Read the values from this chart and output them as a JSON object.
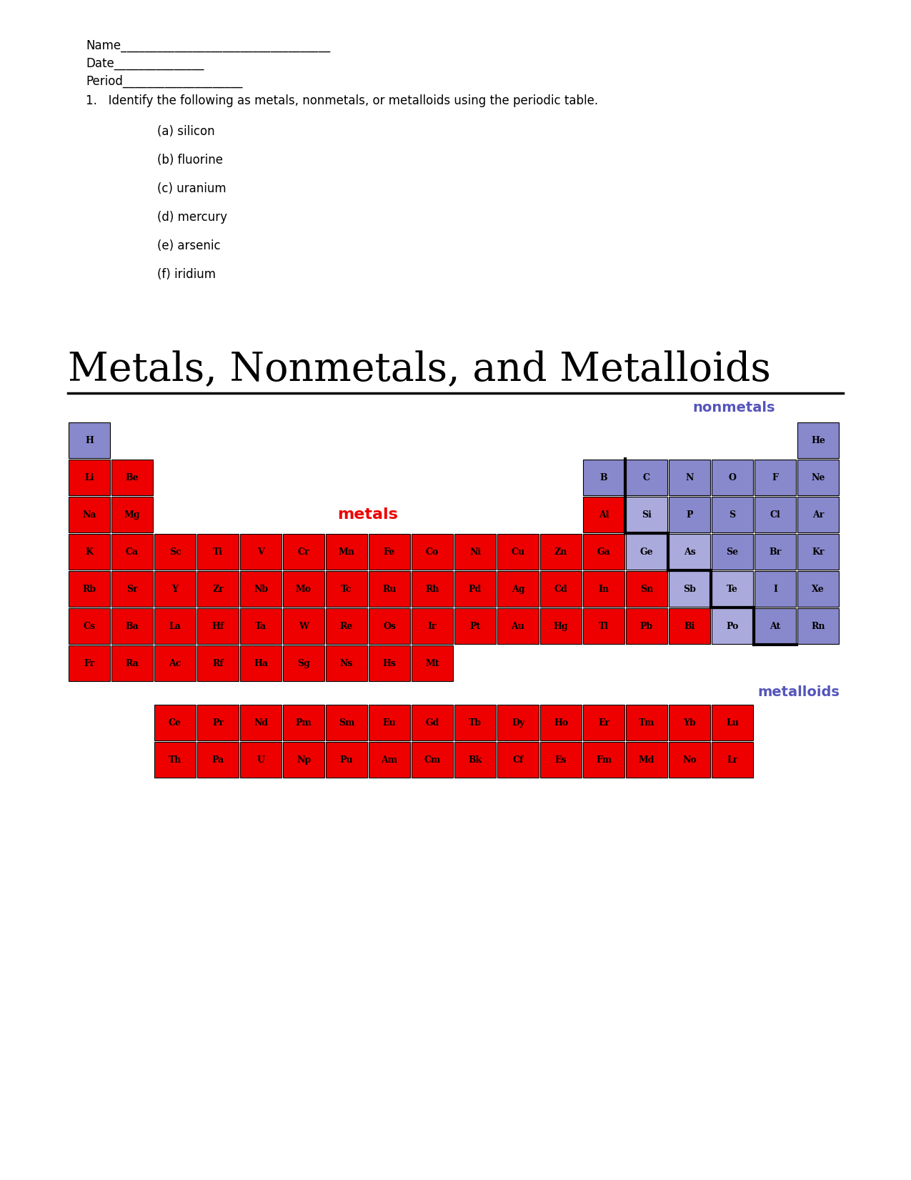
{
  "title": "Metals, Nonmetals, and Metalloids",
  "metal_color": "#EE0000",
  "nonmetal_color": "#8888CC",
  "metalloid_color": "#AAAADD",
  "metals_label_color": "#EE0000",
  "nonmetals_label_color": "#5555BB",
  "metalloids_label_color": "#5555BB",
  "worksheet_lines": [
    "Name___________________________________",
    "Date_______________",
    "Period____________________"
  ],
  "question": "1.   Identify the following as metals, nonmetals, or metalloids using the periodic table.",
  "items": [
    "(a) silicon",
    "(b) fluorine",
    "(c) uranium",
    "(d) mercury",
    "(e) arsenic",
    "(f) iridium"
  ],
  "elements_main": [
    {
      "symbol": "H",
      "row": 1,
      "col": 1,
      "type": "nonmetal"
    },
    {
      "symbol": "He",
      "row": 1,
      "col": 18,
      "type": "nonmetal"
    },
    {
      "symbol": "Li",
      "row": 2,
      "col": 1,
      "type": "metal"
    },
    {
      "symbol": "Be",
      "row": 2,
      "col": 2,
      "type": "metal"
    },
    {
      "symbol": "B",
      "row": 2,
      "col": 13,
      "type": "nonmetal"
    },
    {
      "symbol": "C",
      "row": 2,
      "col": 14,
      "type": "nonmetal"
    },
    {
      "symbol": "N",
      "row": 2,
      "col": 15,
      "type": "nonmetal"
    },
    {
      "symbol": "O",
      "row": 2,
      "col": 16,
      "type": "nonmetal"
    },
    {
      "symbol": "F",
      "row": 2,
      "col": 17,
      "type": "nonmetal"
    },
    {
      "symbol": "Ne",
      "row": 2,
      "col": 18,
      "type": "nonmetal"
    },
    {
      "symbol": "Na",
      "row": 3,
      "col": 1,
      "type": "metal"
    },
    {
      "symbol": "Mg",
      "row": 3,
      "col": 2,
      "type": "metal"
    },
    {
      "symbol": "Al",
      "row": 3,
      "col": 13,
      "type": "metal"
    },
    {
      "symbol": "Si",
      "row": 3,
      "col": 14,
      "type": "metalloid"
    },
    {
      "symbol": "P",
      "row": 3,
      "col": 15,
      "type": "nonmetal"
    },
    {
      "symbol": "S",
      "row": 3,
      "col": 16,
      "type": "nonmetal"
    },
    {
      "symbol": "Cl",
      "row": 3,
      "col": 17,
      "type": "nonmetal"
    },
    {
      "symbol": "Ar",
      "row": 3,
      "col": 18,
      "type": "nonmetal"
    },
    {
      "symbol": "K",
      "row": 4,
      "col": 1,
      "type": "metal"
    },
    {
      "symbol": "Ca",
      "row": 4,
      "col": 2,
      "type": "metal"
    },
    {
      "symbol": "Sc",
      "row": 4,
      "col": 3,
      "type": "metal"
    },
    {
      "symbol": "Ti",
      "row": 4,
      "col": 4,
      "type": "metal"
    },
    {
      "symbol": "V",
      "row": 4,
      "col": 5,
      "type": "metal"
    },
    {
      "symbol": "Cr",
      "row": 4,
      "col": 6,
      "type": "metal"
    },
    {
      "symbol": "Mn",
      "row": 4,
      "col": 7,
      "type": "metal"
    },
    {
      "symbol": "Fe",
      "row": 4,
      "col": 8,
      "type": "metal"
    },
    {
      "symbol": "Co",
      "row": 4,
      "col": 9,
      "type": "metal"
    },
    {
      "symbol": "Ni",
      "row": 4,
      "col": 10,
      "type": "metal"
    },
    {
      "symbol": "Cu",
      "row": 4,
      "col": 11,
      "type": "metal"
    },
    {
      "symbol": "Zn",
      "row": 4,
      "col": 12,
      "type": "metal"
    },
    {
      "symbol": "Ga",
      "row": 4,
      "col": 13,
      "type": "metal"
    },
    {
      "symbol": "Ge",
      "row": 4,
      "col": 14,
      "type": "metalloid"
    },
    {
      "symbol": "As",
      "row": 4,
      "col": 15,
      "type": "metalloid"
    },
    {
      "symbol": "Se",
      "row": 4,
      "col": 16,
      "type": "nonmetal"
    },
    {
      "symbol": "Br",
      "row": 4,
      "col": 17,
      "type": "nonmetal"
    },
    {
      "symbol": "Kr",
      "row": 4,
      "col": 18,
      "type": "nonmetal"
    },
    {
      "symbol": "Rb",
      "row": 5,
      "col": 1,
      "type": "metal"
    },
    {
      "symbol": "Sr",
      "row": 5,
      "col": 2,
      "type": "metal"
    },
    {
      "symbol": "Y",
      "row": 5,
      "col": 3,
      "type": "metal"
    },
    {
      "symbol": "Zr",
      "row": 5,
      "col": 4,
      "type": "metal"
    },
    {
      "symbol": "Nb",
      "row": 5,
      "col": 5,
      "type": "metal"
    },
    {
      "symbol": "Mo",
      "row": 5,
      "col": 6,
      "type": "metal"
    },
    {
      "symbol": "Tc",
      "row": 5,
      "col": 7,
      "type": "metal"
    },
    {
      "symbol": "Ru",
      "row": 5,
      "col": 8,
      "type": "metal"
    },
    {
      "symbol": "Rh",
      "row": 5,
      "col": 9,
      "type": "metal"
    },
    {
      "symbol": "Pd",
      "row": 5,
      "col": 10,
      "type": "metal"
    },
    {
      "symbol": "Ag",
      "row": 5,
      "col": 11,
      "type": "metal"
    },
    {
      "symbol": "Cd",
      "row": 5,
      "col": 12,
      "type": "metal"
    },
    {
      "symbol": "In",
      "row": 5,
      "col": 13,
      "type": "metal"
    },
    {
      "symbol": "Sn",
      "row": 5,
      "col": 14,
      "type": "metal"
    },
    {
      "symbol": "Sb",
      "row": 5,
      "col": 15,
      "type": "metalloid"
    },
    {
      "symbol": "Te",
      "row": 5,
      "col": 16,
      "type": "metalloid"
    },
    {
      "symbol": "I",
      "row": 5,
      "col": 17,
      "type": "nonmetal"
    },
    {
      "symbol": "Xe",
      "row": 5,
      "col": 18,
      "type": "nonmetal"
    },
    {
      "symbol": "Cs",
      "row": 6,
      "col": 1,
      "type": "metal"
    },
    {
      "symbol": "Ba",
      "row": 6,
      "col": 2,
      "type": "metal"
    },
    {
      "symbol": "La",
      "row": 6,
      "col": 3,
      "type": "metal"
    },
    {
      "symbol": "Hf",
      "row": 6,
      "col": 4,
      "type": "metal"
    },
    {
      "symbol": "Ta",
      "row": 6,
      "col": 5,
      "type": "metal"
    },
    {
      "symbol": "W",
      "row": 6,
      "col": 6,
      "type": "metal"
    },
    {
      "symbol": "Re",
      "row": 6,
      "col": 7,
      "type": "metal"
    },
    {
      "symbol": "Os",
      "row": 6,
      "col": 8,
      "type": "metal"
    },
    {
      "symbol": "Ir",
      "row": 6,
      "col": 9,
      "type": "metal"
    },
    {
      "symbol": "Pt",
      "row": 6,
      "col": 10,
      "type": "metal"
    },
    {
      "symbol": "Au",
      "row": 6,
      "col": 11,
      "type": "metal"
    },
    {
      "symbol": "Hg",
      "row": 6,
      "col": 12,
      "type": "metal"
    },
    {
      "symbol": "Tl",
      "row": 6,
      "col": 13,
      "type": "metal"
    },
    {
      "symbol": "Pb",
      "row": 6,
      "col": 14,
      "type": "metal"
    },
    {
      "symbol": "Bi",
      "row": 6,
      "col": 15,
      "type": "metal"
    },
    {
      "symbol": "Po",
      "row": 6,
      "col": 16,
      "type": "metalloid"
    },
    {
      "symbol": "At",
      "row": 6,
      "col": 17,
      "type": "nonmetal"
    },
    {
      "symbol": "Rn",
      "row": 6,
      "col": 18,
      "type": "nonmetal"
    },
    {
      "symbol": "Fr",
      "row": 7,
      "col": 1,
      "type": "metal"
    },
    {
      "symbol": "Ra",
      "row": 7,
      "col": 2,
      "type": "metal"
    },
    {
      "symbol": "Ac",
      "row": 7,
      "col": 3,
      "type": "metal"
    },
    {
      "symbol": "Rf",
      "row": 7,
      "col": 4,
      "type": "metal"
    },
    {
      "symbol": "Ha",
      "row": 7,
      "col": 5,
      "type": "metal"
    },
    {
      "symbol": "Sg",
      "row": 7,
      "col": 6,
      "type": "metal"
    },
    {
      "symbol": "Ns",
      "row": 7,
      "col": 7,
      "type": "metal"
    },
    {
      "symbol": "Hs",
      "row": 7,
      "col": 8,
      "type": "metal"
    },
    {
      "symbol": "Mt",
      "row": 7,
      "col": 9,
      "type": "metal"
    }
  ],
  "elements_lanthanide": [
    {
      "symbol": "Ce"
    },
    {
      "symbol": "Pr"
    },
    {
      "symbol": "Nd"
    },
    {
      "symbol": "Pm"
    },
    {
      "symbol": "Sm"
    },
    {
      "symbol": "Eu"
    },
    {
      "symbol": "Gd"
    },
    {
      "symbol": "Tb"
    },
    {
      "symbol": "Dy"
    },
    {
      "symbol": "Ho"
    },
    {
      "symbol": "Er"
    },
    {
      "symbol": "Tm"
    },
    {
      "symbol": "Yb"
    },
    {
      "symbol": "Lu"
    }
  ],
  "elements_actinide": [
    {
      "symbol": "Th"
    },
    {
      "symbol": "Pa"
    },
    {
      "symbol": "U"
    },
    {
      "symbol": "Np"
    },
    {
      "symbol": "Pu"
    },
    {
      "symbol": "Am"
    },
    {
      "symbol": "Cm"
    },
    {
      "symbol": "Bk"
    },
    {
      "symbol": "Cf"
    },
    {
      "symbol": "Es"
    },
    {
      "symbol": "Fm"
    },
    {
      "symbol": "Md"
    },
    {
      "symbol": "No"
    },
    {
      "symbol": "Lr"
    }
  ],
  "staircase_left_col_per_row": {
    "3": 14,
    "4": 14,
    "5": 15,
    "6": 16,
    "7": 17
  }
}
